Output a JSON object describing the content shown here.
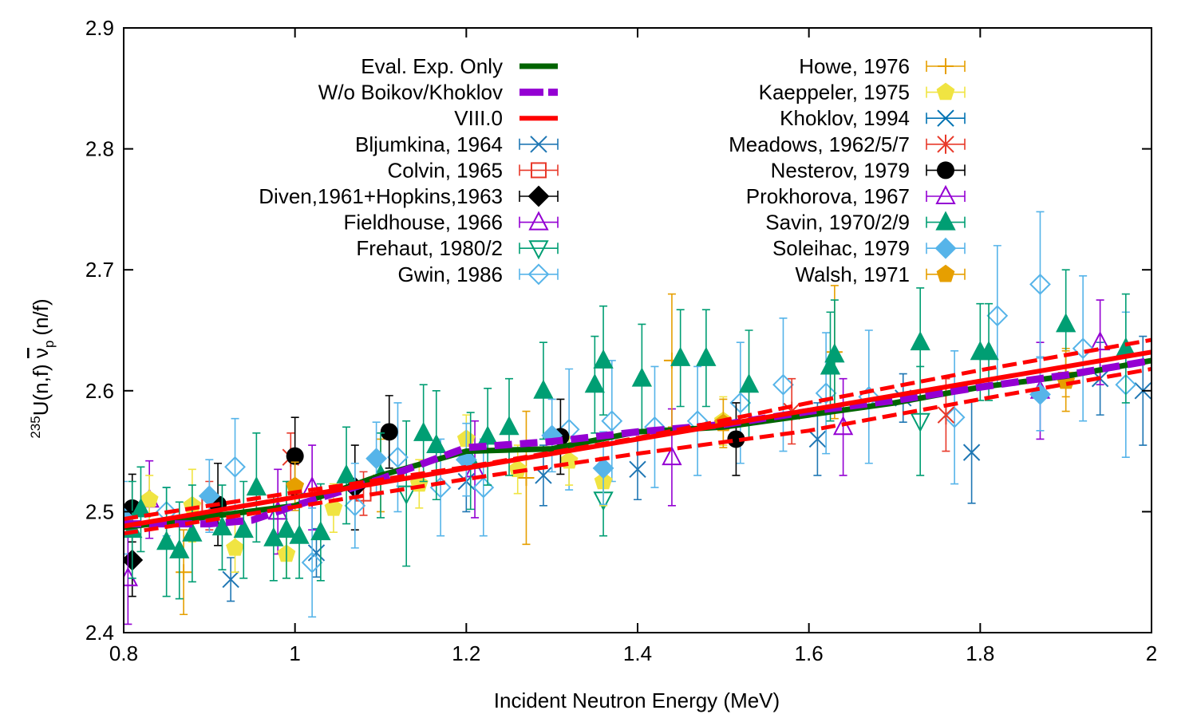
{
  "chart_data": {
    "type": "scatter",
    "title": "",
    "xlabel": "Incident Neutron Energy (MeV)",
    "ylabel": "(n/f)",
    "ylabel_sup": "235",
    "ylabel_main": "U(n,f) ",
    "ylabel_nu": "ν",
    "ylabel_sub": "p",
    "xlim": [
      0.8,
      2.0
    ],
    "ylim": [
      2.4,
      2.9
    ],
    "xticks": [
      0.8,
      1.0,
      1.2,
      1.4,
      1.6,
      1.8,
      2.0
    ],
    "xtick_labels": [
      "0.8",
      "1",
      "1.2",
      "1.4",
      "1.6",
      "1.8",
      "2"
    ],
    "yticks": [
      2.4,
      2.5,
      2.6,
      2.7,
      2.8,
      2.9
    ],
    "ytick_labels": [
      "2.4",
      "2.5",
      "2.6",
      "2.7",
      "2.8",
      "2.9"
    ],
    "grid": false,
    "legend_position": "top, two columns",
    "curves": [
      {
        "name": "Eval. Exp. Only",
        "color": "#006400",
        "style": "solid",
        "x": [
          0.8,
          0.9,
          1.0,
          1.1,
          1.2,
          1.3,
          1.4,
          1.5,
          1.6,
          1.7,
          1.8,
          1.9,
          2.0
        ],
        "y": [
          2.487,
          2.496,
          2.505,
          2.53,
          2.55,
          2.552,
          2.566,
          2.57,
          2.58,
          2.59,
          2.603,
          2.612,
          2.625
        ]
      },
      {
        "name": "W/o Boikov/Khoklov",
        "color": "#9400D3",
        "style": "dashed",
        "x": [
          0.8,
          0.9,
          0.95,
          1.0,
          1.1,
          1.2,
          1.3,
          1.4,
          1.5,
          1.6,
          1.7,
          1.8,
          1.9,
          2.0
        ],
        "y": [
          2.49,
          2.49,
          2.493,
          2.505,
          2.527,
          2.553,
          2.558,
          2.566,
          2.572,
          2.583,
          2.592,
          2.603,
          2.613,
          2.625
        ]
      },
      {
        "name": "VIII.0",
        "color": "#ff0000",
        "style": "solid",
        "x": [
          0.8,
          2.0
        ],
        "y": [
          2.488,
          2.632
        ]
      },
      {
        "name": "VIII.0 upper band",
        "color": "#ff0000",
        "style": "dashed",
        "x": [
          0.8,
          1.0,
          1.2,
          1.4,
          1.6,
          1.8,
          2.0
        ],
        "y": [
          2.494,
          2.516,
          2.537,
          2.561,
          2.59,
          2.617,
          2.642
        ]
      },
      {
        "name": "VIII.0 lower band",
        "color": "#ff0000",
        "style": "dashed",
        "x": [
          0.8,
          1.0,
          1.2,
          1.4,
          1.6,
          1.8,
          2.0
        ],
        "y": [
          2.482,
          2.504,
          2.527,
          2.548,
          2.567,
          2.593,
          2.618
        ]
      }
    ],
    "series": [
      {
        "name": "Bljumkina, 1964",
        "marker": "x",
        "color": "#1f77b4",
        "points": [
          [
            0.925,
            2.444,
            0.018
          ],
          [
            1.025,
            2.466,
            0.02
          ],
          [
            1.2,
            2.525,
            0.025
          ],
          [
            1.29,
            2.53,
            0.025
          ],
          [
            1.4,
            2.535,
            0.025
          ],
          [
            1.61,
            2.56,
            0.03
          ],
          [
            1.71,
            2.594,
            0.02
          ],
          [
            1.79,
            2.549,
            0.042
          ],
          [
            1.94,
            2.61,
            0.03
          ],
          [
            1.99,
            2.6,
            0.045
          ]
        ]
      },
      {
        "name": "Colvin, 1965",
        "marker": "square-open",
        "color": "#e8392a",
        "points": [
          [
            0.9,
            2.505,
            0.02
          ],
          [
            1.08,
            2.515,
            0.018
          ]
        ]
      },
      {
        "name": "Diven,1961+Hopkins,1963",
        "marker": "diamond",
        "color": "#000000",
        "points": [
          [
            0.81,
            2.46,
            0.03
          ],
          [
            1.07,
            2.52,
            0.035
          ]
        ]
      },
      {
        "name": "Fieldhouse, 1966",
        "marker": "triangle-open",
        "color": "#9400D3",
        "points": [
          [
            0.805,
            2.445,
            0.038
          ],
          [
            0.83,
            2.51,
            0.032
          ],
          [
            0.98,
            2.5,
            0.035
          ],
          [
            1.02,
            2.52,
            0.035
          ],
          [
            1.21,
            2.535,
            0.04
          ],
          [
            1.44,
            2.545,
            0.04
          ],
          [
            1.64,
            2.57,
            0.04
          ],
          [
            1.87,
            2.6,
            0.04
          ],
          [
            1.94,
            2.64,
            0.035
          ]
        ]
      },
      {
        "name": "Frehaut, 1980/2",
        "marker": "triangle-down-open",
        "color": "#009e73",
        "points": [
          [
            1.13,
            2.515,
            0.06
          ],
          [
            1.36,
            2.51,
            0.03
          ],
          [
            1.73,
            2.575,
            0.045
          ]
        ]
      },
      {
        "name": "Gwin, 1986",
        "marker": "diamond-open",
        "color": "#56b4e9",
        "points": [
          [
            0.85,
            2.5,
            0.02
          ],
          [
            0.93,
            2.537,
            0.04
          ],
          [
            1.02,
            2.458,
            0.045
          ],
          [
            1.07,
            2.505,
            0.035
          ],
          [
            1.12,
            2.545,
            0.045
          ],
          [
            1.17,
            2.52,
            0.04
          ],
          [
            1.22,
            2.52,
            0.04
          ],
          [
            1.32,
            2.568,
            0.05
          ],
          [
            1.37,
            2.575,
            0.05
          ],
          [
            1.42,
            2.57,
            0.05
          ],
          [
            1.47,
            2.575,
            0.045
          ],
          [
            1.52,
            2.59,
            0.05
          ],
          [
            1.57,
            2.605,
            0.055
          ],
          [
            1.62,
            2.598,
            0.05
          ],
          [
            1.67,
            2.595,
            0.055
          ],
          [
            1.77,
            2.578,
            0.055
          ],
          [
            1.82,
            2.662,
            0.058
          ],
          [
            1.87,
            2.688,
            0.06
          ],
          [
            1.92,
            2.635,
            0.06
          ],
          [
            1.97,
            2.605,
            0.06
          ]
        ]
      },
      {
        "name": "Howe, 1976",
        "marker": "plus",
        "color": "#e69f00",
        "points": [
          [
            0.87,
            2.45,
            0.035
          ],
          [
            1.1,
            2.53,
            0.03
          ],
          [
            1.27,
            2.528,
            0.055
          ],
          [
            1.44,
            2.625,
            0.055
          ],
          [
            1.63,
            2.632,
            0.055
          ],
          [
            1.9,
            2.615,
            0.02
          ]
        ]
      },
      {
        "name": "Kaeppeler, 1975",
        "marker": "pentagon",
        "color": "#f0e442",
        "points": [
          [
            0.83,
            2.51,
            0.02
          ],
          [
            0.88,
            2.505,
            0.03
          ],
          [
            0.93,
            2.47,
            0.02
          ],
          [
            0.99,
            2.465,
            0.02
          ],
          [
            1.045,
            2.503,
            0.02
          ],
          [
            1.145,
            2.523,
            0.02
          ],
          [
            1.2,
            2.56,
            0.02
          ],
          [
            1.26,
            2.535,
            0.02
          ],
          [
            1.32,
            2.542,
            0.02
          ],
          [
            1.36,
            2.525,
            0.02
          ],
          [
            1.5,
            2.575,
            0.02
          ]
        ]
      },
      {
        "name": "Khoklov, 1994",
        "marker": "x",
        "color": "#0072b2",
        "points": []
      },
      {
        "name": "Meadows, 1962/5/7",
        "marker": "star",
        "color": "#e8392a",
        "points": [
          [
            0.995,
            2.545,
            0.02
          ],
          [
            1.58,
            2.583,
            0.027
          ],
          [
            1.76,
            2.58,
            0.03
          ]
        ]
      },
      {
        "name": "Nesterov, 1979",
        "marker": "circle",
        "color": "#000000",
        "points": [
          [
            0.81,
            2.503,
            0.028
          ],
          [
            0.91,
            2.506,
            0.034
          ],
          [
            1.0,
            2.546,
            0.032
          ],
          [
            1.11,
            2.566,
            0.03
          ],
          [
            1.31,
            2.562,
            0.031
          ],
          [
            1.515,
            2.56,
            0.03
          ]
        ]
      },
      {
        "name": "Prokhorova, 1967",
        "marker": "triangle-open",
        "color": "#9400D3",
        "points": []
      },
      {
        "name": "Savin, 1970/2/9",
        "marker": "triangle",
        "color": "#009e73",
        "points": [
          [
            0.81,
            2.485,
            0.04
          ],
          [
            0.82,
            2.502,
            0.035
          ],
          [
            0.85,
            2.475,
            0.045
          ],
          [
            0.865,
            2.468,
            0.04
          ],
          [
            0.88,
            2.482,
            0.04
          ],
          [
            0.915,
            2.487,
            0.035
          ],
          [
            0.94,
            2.485,
            0.04
          ],
          [
            0.955,
            2.52,
            0.045
          ],
          [
            0.975,
            2.478,
            0.035
          ],
          [
            0.99,
            2.485,
            0.04
          ],
          [
            1.005,
            2.48,
            0.035
          ],
          [
            1.03,
            2.483,
            0.04
          ],
          [
            1.06,
            2.53,
            0.04
          ],
          [
            1.1,
            2.53,
            0.035
          ],
          [
            1.15,
            2.565,
            0.04
          ],
          [
            1.165,
            2.555,
            0.045
          ],
          [
            1.205,
            2.542,
            0.04
          ],
          [
            1.225,
            2.562,
            0.04
          ],
          [
            1.25,
            2.57,
            0.04
          ],
          [
            1.29,
            2.6,
            0.04
          ],
          [
            1.35,
            2.605,
            0.04
          ],
          [
            1.36,
            2.625,
            0.045
          ],
          [
            1.405,
            2.61,
            0.045
          ],
          [
            1.45,
            2.627,
            0.04
          ],
          [
            1.48,
            2.627,
            0.04
          ],
          [
            1.53,
            2.605,
            0.045
          ],
          [
            1.625,
            2.62,
            0.045
          ],
          [
            1.63,
            2.63,
            0.045
          ],
          [
            1.73,
            2.64,
            0.045
          ],
          [
            1.8,
            2.632,
            0.04
          ],
          [
            1.81,
            2.632,
            0.04
          ],
          [
            1.9,
            2.655,
            0.045
          ],
          [
            1.97,
            2.635,
            0.045
          ]
        ]
      },
      {
        "name": "Soleihac, 1979",
        "marker": "diamond",
        "color": "#56b4e9",
        "points": [
          [
            0.8,
            2.495,
            0.03
          ],
          [
            0.9,
            2.513,
            0.03
          ],
          [
            1.095,
            2.544,
            0.03
          ],
          [
            1.2,
            2.543,
            0.03
          ],
          [
            1.3,
            2.563,
            0.03
          ],
          [
            1.36,
            2.536,
            0.03
          ],
          [
            1.87,
            2.597,
            0.03
          ]
        ]
      },
      {
        "name": "Walsh, 1971",
        "marker": "pentagon",
        "color": "#e69f00",
        "points": [
          [
            1.0,
            2.521,
            0.02
          ],
          [
            1.5,
            2.573,
            0.02
          ],
          [
            1.9,
            2.608,
            0.025
          ]
        ]
      }
    ],
    "legend": [
      {
        "label": "Eval. Exp. Only",
        "kind": "line",
        "color": "#006400",
        "dash": false,
        "width": 7
      },
      {
        "label": "W/o Boikov/Khoklov",
        "kind": "line",
        "color": "#9400D3",
        "dash": true,
        "width": 9
      },
      {
        "label": "VIII.0",
        "kind": "line",
        "color": "#ff0000",
        "dash": false,
        "width": 6
      },
      {
        "label": "Bljumkina, 1964",
        "kind": "marker",
        "marker": "x",
        "color": "#1f77b4"
      },
      {
        "label": "Colvin, 1965",
        "kind": "marker",
        "marker": "square-open",
        "color": "#e8392a"
      },
      {
        "label": "Diven,1961+Hopkins,1963",
        "kind": "marker",
        "marker": "diamond",
        "color": "#000000"
      },
      {
        "label": "Fieldhouse, 1966",
        "kind": "marker",
        "marker": "triangle-open",
        "color": "#9400D3"
      },
      {
        "label": "Frehaut, 1980/2",
        "kind": "marker",
        "marker": "triangle-down-open",
        "color": "#009e73"
      },
      {
        "label": "Gwin, 1986",
        "kind": "marker",
        "marker": "diamond-open",
        "color": "#56b4e9"
      },
      {
        "label": "Howe, 1976",
        "kind": "marker",
        "marker": "plus",
        "color": "#e69f00"
      },
      {
        "label": "Kaeppeler, 1975",
        "kind": "marker",
        "marker": "pentagon",
        "color": "#f0e442"
      },
      {
        "label": "Khoklov, 1994",
        "kind": "marker",
        "marker": "x",
        "color": "#0072b2"
      },
      {
        "label": "Meadows, 1962/5/7",
        "kind": "marker",
        "marker": "star",
        "color": "#e8392a"
      },
      {
        "label": "Nesterov, 1979",
        "kind": "marker",
        "marker": "circle",
        "color": "#000000"
      },
      {
        "label": "Prokhorova, 1967",
        "kind": "marker",
        "marker": "triangle-open",
        "color": "#9400D3"
      },
      {
        "label": "Savin, 1970/2/9",
        "kind": "marker",
        "marker": "triangle",
        "color": "#009e73"
      },
      {
        "label": "Soleihac, 1979",
        "kind": "marker",
        "marker": "diamond",
        "color": "#56b4e9"
      },
      {
        "label": "Walsh, 1971",
        "kind": "marker",
        "marker": "pentagon",
        "color": "#e69f00"
      }
    ]
  }
}
